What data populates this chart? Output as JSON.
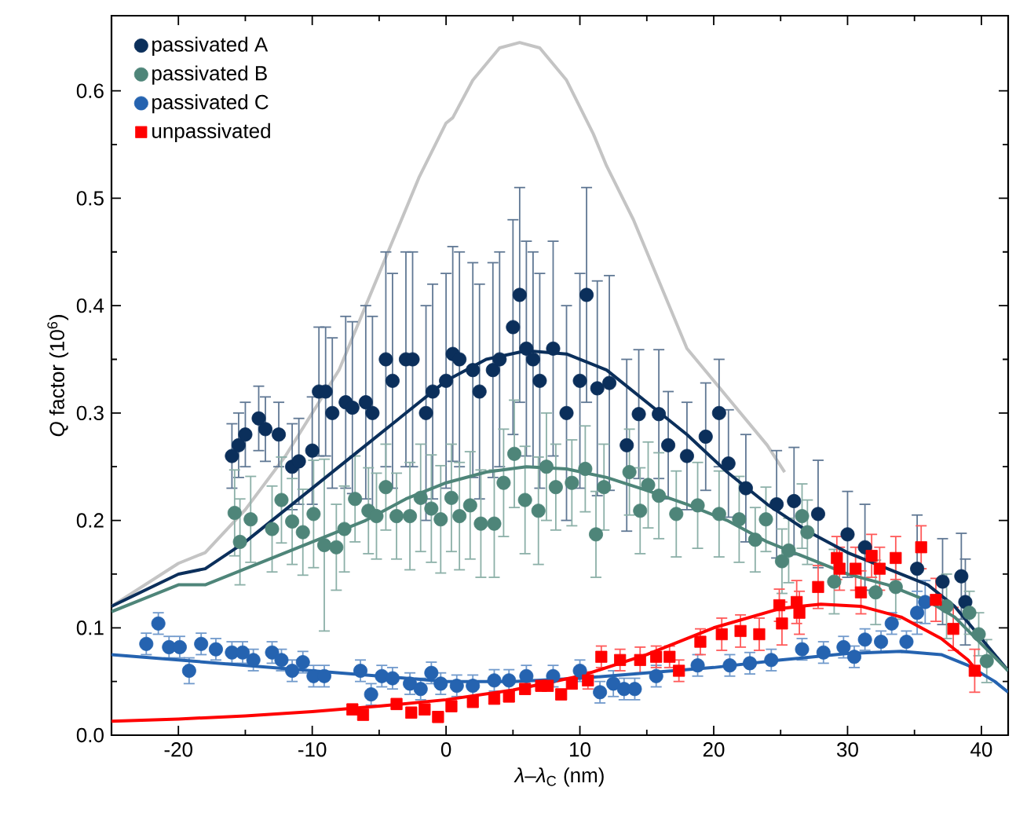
{
  "chart_data": {
    "type": "scatter",
    "xlabel": "*λ*–*λ*$_{C}$ (nm)",
    "ylabel": "*Q* factor (10$^{6}$)",
    "xlim": [
      -25,
      42
    ],
    "ylim": [
      0,
      0.67
    ],
    "xticks": [
      -20,
      -10,
      0,
      10,
      20,
      30,
      40
    ],
    "yticks": [
      {
        "value": 0,
        "label": "0.0"
      },
      0.1,
      0.2,
      0.3,
      0.4,
      0.5,
      0.6
    ],
    "grid": false,
    "legend": "top left",
    "series": [
      {
        "type": "line",
        "color": "#c4c4c4",
        "marker": "none",
        "line_style": "solid",
        "x": [
          -25,
          -20,
          -18,
          -15,
          -12,
          -10,
          -8,
          -6,
          -4,
          -2,
          0,
          0.5,
          2,
          4,
          5.5,
          7,
          9,
          11,
          12,
          14,
          16,
          18,
          20,
          22,
          24,
          25.3
        ],
        "values": [
          0.12,
          0.16,
          0.17,
          0.21,
          0.26,
          0.3,
          0.34,
          0.4,
          0.46,
          0.52,
          0.57,
          0.575,
          0.61,
          0.64,
          0.645,
          0.64,
          0.61,
          0.56,
          0.53,
          0.48,
          0.42,
          0.36,
          0.33,
          0.3,
          0.27,
          0.245
        ]
      },
      {
        "name": "passivated A",
        "color": "#0b2f5b",
        "marker": "circle",
        "x": [
          -16,
          -15.5,
          -15,
          -14,
          -13.5,
          -12.5,
          -11.5,
          -11,
          -10,
          -9.5,
          -9,
          -8.5,
          -7.5,
          -7,
          -6,
          -5.5,
          -4.5,
          -4,
          -3,
          -2.5,
          -1.5,
          -1,
          0,
          0.5,
          1,
          2,
          2.5,
          3.5,
          4,
          5,
          5.5,
          6,
          6.5,
          7,
          8,
          9,
          10,
          10.5,
          11.3,
          12.2,
          13.5,
          14.4,
          15.9,
          16.6,
          18,
          19.4,
          20.4,
          21.1,
          22.4,
          24.7,
          26,
          27.8,
          30,
          31.3,
          35.2,
          37.1,
          38.5,
          38.8
        ],
        "values": [
          0.26,
          0.27,
          0.28,
          0.295,
          0.285,
          0.28,
          0.25,
          0.255,
          0.265,
          0.32,
          0.32,
          0.3,
          0.31,
          0.305,
          0.31,
          0.3,
          0.35,
          0.33,
          0.35,
          0.35,
          0.3,
          0.32,
          0.33,
          0.355,
          0.35,
          0.34,
          0.32,
          0.34,
          0.35,
          0.38,
          0.41,
          0.36,
          0.35,
          0.33,
          0.36,
          0.3,
          0.33,
          0.41,
          0.323,
          0.328,
          0.27,
          0.299,
          0.299,
          0.27,
          0.26,
          0.278,
          0.3,
          0.253,
          0.23,
          0.215,
          0.218,
          0.206,
          0.187,
          0.175,
          0.155,
          0.143,
          0.148,
          0.124
        ],
        "errors": [
          0.03,
          0.03,
          0.03,
          0.03,
          0.03,
          0.03,
          0.04,
          0.04,
          0.05,
          0.06,
          0.06,
          0.07,
          0.08,
          0.08,
          0.09,
          0.09,
          0.1,
          0.1,
          0.1,
          0.1,
          0.1,
          0.1,
          0.1,
          0.1,
          0.1,
          0.1,
          0.1,
          0.1,
          0.1,
          0.1,
          0.1,
          0.1,
          0.1,
          0.1,
          0.1,
          0.1,
          0.1,
          0.1,
          0.1,
          0.1,
          0.08,
          0.06,
          0.06,
          0.05,
          0.05,
          0.05,
          0.05,
          0.05,
          0.05,
          0.05,
          0.05,
          0.05,
          0.04,
          0.04,
          0.05,
          0.04,
          0.04,
          0.04
        ]
      },
      {
        "name": "passivated B",
        "color": "#4e8579",
        "marker": "circle",
        "x": [
          -15.8,
          -15.4,
          -14.6,
          -13,
          -12.3,
          -11.5,
          -10.7,
          -9.9,
          -9.1,
          -8.2,
          -7.6,
          -6.8,
          -5.8,
          -5.2,
          -4.5,
          -3.7,
          -2.7,
          -1.9,
          -1.1,
          -0.4,
          0.4,
          1,
          1.8,
          2.6,
          3.6,
          4.3,
          5.1,
          5.9,
          6.9,
          7.5,
          8.2,
          9.4,
          10.4,
          11.2,
          11.8,
          13.7,
          14.5,
          15.1,
          15.9,
          17.2,
          18.8,
          20.4,
          21.9,
          23.1,
          23.9,
          25.1,
          25.6,
          26.6,
          27,
          29,
          32.1,
          33.6,
          37.4,
          39.1,
          39.8,
          40.4
        ],
        "values": [
          0.207,
          0.18,
          0.201,
          0.192,
          0.219,
          0.199,
          0.189,
          0.206,
          0.177,
          0.175,
          0.192,
          0.22,
          0.209,
          0.204,
          0.231,
          0.204,
          0.204,
          0.221,
          0.211,
          0.201,
          0.221,
          0.204,
          0.214,
          0.197,
          0.197,
          0.235,
          0.262,
          0.219,
          0.209,
          0.25,
          0.231,
          0.235,
          0.248,
          0.187,
          0.231,
          0.245,
          0.209,
          0.233,
          0.223,
          0.206,
          0.214,
          0.206,
          0.201,
          0.182,
          0.201,
          0.162,
          0.172,
          0.204,
          0.189,
          0.143,
          0.133,
          0.138,
          0.12,
          0.114,
          0.094,
          0.069
        ],
        "errors": [
          0.04,
          0.04,
          0.04,
          0.04,
          0.04,
          0.04,
          0.04,
          0.05,
          0.08,
          0.04,
          0.04,
          0.04,
          0.04,
          0.04,
          0.04,
          0.04,
          0.05,
          0.05,
          0.05,
          0.05,
          0.05,
          0.05,
          0.05,
          0.05,
          0.05,
          0.05,
          0.05,
          0.05,
          0.05,
          0.05,
          0.04,
          0.04,
          0.04,
          0.04,
          0.04,
          0.04,
          0.04,
          0.04,
          0.04,
          0.04,
          0.04,
          0.04,
          0.04,
          0.03,
          0.03,
          0.03,
          0.03,
          0.03,
          0.03,
          0.03,
          0.03,
          0.03,
          0.03,
          0.02,
          0.02,
          0.02
        ]
      },
      {
        "name": "passivated C",
        "color": "#2563b0",
        "marker": "circle",
        "x": [
          -22.4,
          -21.5,
          -20.7,
          -19.9,
          -19.2,
          -18.3,
          -17.2,
          -16,
          -15.2,
          -14.4,
          -13,
          -12.3,
          -11.5,
          -10.7,
          -9.9,
          -9.1,
          -6.4,
          -5.6,
          -4.8,
          -4,
          -2.7,
          -1.9,
          -1.1,
          -0.4,
          0.8,
          2,
          3.6,
          4.7,
          6,
          8,
          10,
          11.5,
          12.5,
          13.3,
          14.1,
          15.7,
          18.8,
          21.2,
          22.7,
          24.3,
          26.6,
          28.2,
          29.7,
          30.5,
          31.3,
          32.5,
          33.3,
          34.4,
          35.2,
          35.8
        ],
        "values": [
          0.085,
          0.104,
          0.082,
          0.082,
          0.06,
          0.085,
          0.08,
          0.077,
          0.077,
          0.07,
          0.077,
          0.07,
          0.06,
          0.068,
          0.055,
          0.055,
          0.06,
          0.038,
          0.055,
          0.053,
          0.048,
          0.043,
          0.058,
          0.048,
          0.046,
          0.046,
          0.051,
          0.051,
          0.055,
          0.055,
          0.06,
          0.04,
          0.048,
          0.043,
          0.043,
          0.055,
          0.065,
          0.065,
          0.067,
          0.07,
          0.08,
          0.077,
          0.082,
          0.073,
          0.089,
          0.087,
          0.104,
          0.087,
          0.114,
          0.124
        ],
        "errors": [
          0.01,
          0.01,
          0.01,
          0.01,
          0.012,
          0.01,
          0.01,
          0.01,
          0.01,
          0.01,
          0.01,
          0.01,
          0.01,
          0.01,
          0.01,
          0.01,
          0.01,
          0.01,
          0.01,
          0.01,
          0.01,
          0.01,
          0.01,
          0.01,
          0.01,
          0.01,
          0.01,
          0.01,
          0.01,
          0.01,
          0.01,
          0.01,
          0.012,
          0.01,
          0.01,
          0.01,
          0.01,
          0.01,
          0.01,
          0.01,
          0.01,
          0.01,
          0.01,
          0.01,
          0.01,
          0.01,
          0.01,
          0.01,
          0.02,
          0.02
        ]
      },
      {
        "name": "unpassivated",
        "color": "#ff0000",
        "marker": "square",
        "x": [
          -7,
          -6.2,
          -3.7,
          -2.6,
          -1.6,
          -0.6,
          0.4,
          2,
          3.6,
          4.7,
          5.9,
          7.1,
          7.6,
          8.6,
          9.4,
          10.6,
          11.6,
          13,
          14.5,
          15.7,
          16.7,
          17.4,
          19,
          20.6,
          22,
          23.4,
          24.9,
          25.1,
          26.2,
          26.4,
          27.8,
          29.2,
          29.4,
          30.6,
          31.0,
          31.8,
          32.4,
          33.6,
          35.5,
          36.6,
          37.9,
          39.5
        ],
        "values": [
          0.024,
          0.019,
          0.029,
          0.021,
          0.024,
          0.017,
          0.027,
          0.031,
          0.034,
          0.036,
          0.043,
          0.046,
          0.046,
          0.038,
          0.048,
          0.051,
          0.073,
          0.07,
          0.07,
          0.073,
          0.073,
          0.06,
          0.087,
          0.094,
          0.097,
          0.094,
          0.121,
          0.104,
          0.124,
          0.114,
          0.138,
          0.165,
          0.155,
          0.155,
          0.133,
          0.167,
          0.155,
          0.165,
          0.175,
          0.126,
          0.099,
          0.06
        ],
        "errors": [
          0.005,
          0.005,
          0.005,
          0.005,
          0.005,
          0.005,
          0.005,
          0.005,
          0.005,
          0.005,
          0.005,
          0.005,
          0.005,
          0.005,
          0.005,
          0.008,
          0.01,
          0.01,
          0.012,
          0.01,
          0.01,
          0.01,
          0.012,
          0.015,
          0.015,
          0.015,
          0.015,
          0.02,
          0.02,
          0.02,
          0.02,
          0.02,
          0.02,
          0.02,
          0.02,
          0.02,
          0.02,
          0.02,
          0.02,
          0.02,
          0.02,
          0.02
        ]
      },
      {
        "type": "line",
        "color": "#0b2f5b",
        "marker": "none",
        "line_style": "solid",
        "x": [
          -25,
          -20,
          -18,
          -15,
          -12,
          -9,
          -6,
          -3,
          0,
          3,
          6,
          9,
          12,
          15,
          18,
          21,
          24,
          27,
          30,
          33,
          36,
          38,
          40,
          42
        ],
        "values": [
          0.12,
          0.15,
          0.155,
          0.18,
          0.21,
          0.24,
          0.27,
          0.3,
          0.33,
          0.35,
          0.358,
          0.355,
          0.34,
          0.31,
          0.28,
          0.245,
          0.215,
          0.19,
          0.17,
          0.155,
          0.14,
          0.12,
          0.09,
          0.06
        ]
      },
      {
        "type": "line",
        "color": "#4e8579",
        "marker": "none",
        "line_style": "solid",
        "x": [
          -25,
          -20,
          -18,
          -15,
          -12,
          -9,
          -6,
          -3,
          0,
          3,
          6,
          9,
          12,
          15,
          18,
          21,
          24,
          27,
          30,
          33,
          36,
          38,
          40,
          42
        ],
        "values": [
          0.115,
          0.14,
          0.14,
          0.155,
          0.17,
          0.185,
          0.2,
          0.22,
          0.235,
          0.245,
          0.25,
          0.248,
          0.24,
          0.228,
          0.215,
          0.2,
          0.18,
          0.165,
          0.15,
          0.14,
          0.125,
          0.11,
          0.085,
          0.06
        ]
      },
      {
        "type": "line",
        "color": "#2563b0",
        "marker": "none",
        "line_style": "solid",
        "x": [
          -25,
          -20,
          -15,
          -10,
          -5,
          0,
          5,
          10,
          15,
          20,
          25,
          30,
          34,
          37,
          39,
          41,
          42
        ],
        "values": [
          0.075,
          0.07,
          0.065,
          0.06,
          0.055,
          0.05,
          0.05,
          0.053,
          0.058,
          0.063,
          0.07,
          0.076,
          0.078,
          0.075,
          0.065,
          0.05,
          0.04
        ]
      },
      {
        "type": "line",
        "color": "#ff0000",
        "marker": "none",
        "line_style": "solid",
        "x": [
          -25,
          -20,
          -15,
          -10,
          -5,
          0,
          5,
          10,
          15,
          20,
          25,
          28,
          31,
          34,
          37,
          39,
          40
        ],
        "values": [
          0.013,
          0.015,
          0.018,
          0.022,
          0.027,
          0.033,
          0.042,
          0.055,
          0.075,
          0.1,
          0.118,
          0.122,
          0.12,
          0.11,
          0.09,
          0.07,
          0.055
        ]
      }
    ]
  }
}
